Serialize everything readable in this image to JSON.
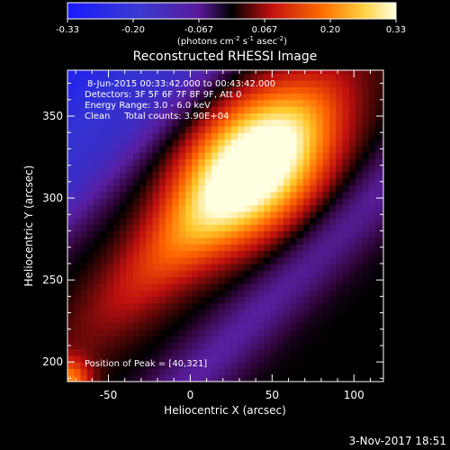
{
  "colorbar": {
    "ticks": [
      "-0.33",
      "-0.20",
      "-0.067",
      "0.067",
      "0.20",
      "0.33"
    ],
    "unit_prefix": "(photons cm",
    "unit_exp1": "-2",
    "unit_mid": " s",
    "unit_exp2": "-1",
    "unit_mid2": " asec",
    "unit_exp3": "-2",
    "unit_suffix": ")"
  },
  "chart_data": {
    "type": "heatmap",
    "title": "Reconstructed RHESSI Image",
    "xlabel": "Heliocentric X (arcsec)",
    "ylabel": "Heliocentric Y (arcsec)",
    "xlim": [
      -75,
      118
    ],
    "ylim": [
      188,
      378
    ],
    "xticks": [
      "-50",
      "0",
      "50",
      "100"
    ],
    "yticks": [
      "200",
      "250",
      "300",
      "350"
    ],
    "xtick_values": [
      -50,
      0,
      50,
      100
    ],
    "ytick_values": [
      200,
      250,
      300,
      350
    ],
    "clim": [
      -0.33,
      0.33
    ],
    "colormap": "rhessi-blue-red-yellow",
    "peak": [
      40,
      321
    ],
    "annotations": [
      "8-Jun-2015 00:33:42.000 to 00:43:42.000",
      "Detectors: 3F 5F 6F 7F 8F 9F, Att 0",
      "Energy Range: 3.0 - 6.0 keV",
      "Clean     Total counts: 3.90E+04"
    ],
    "peak_label": "Position of Peak = [40,321]"
  },
  "footer": {
    "date": "3-Nov-2017 18:51"
  }
}
